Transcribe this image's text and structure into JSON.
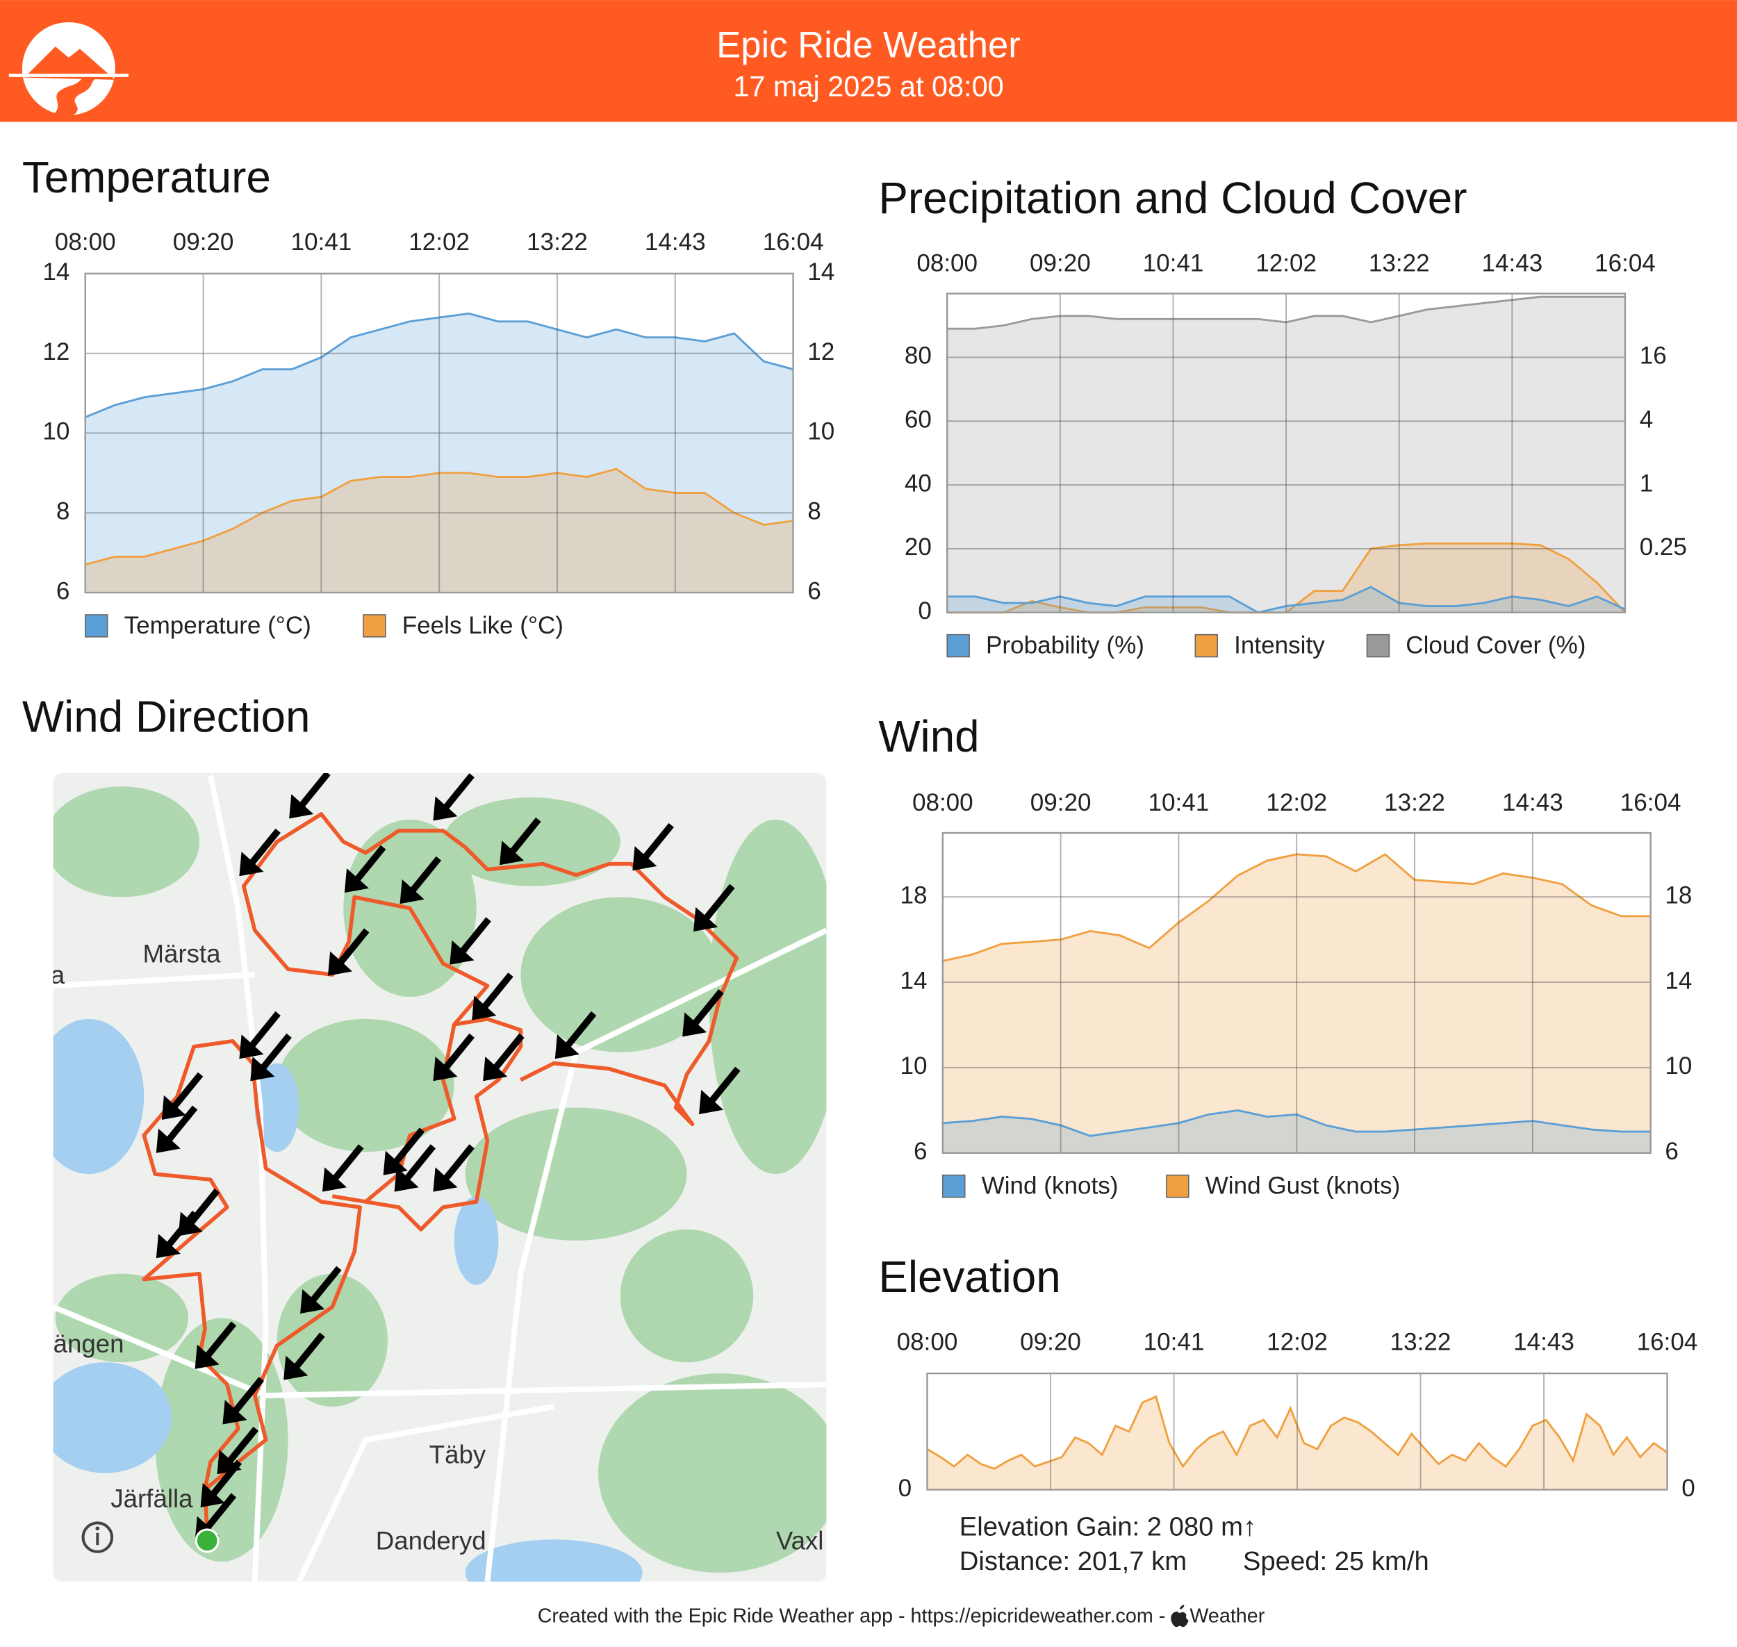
{
  "header": {
    "title": "Epic Ride Weather",
    "subtitle": "17 maj 2025 at 08:00"
  },
  "chart_data": [
    {
      "type": "area",
      "title": "Temperature",
      "xticks": [
        "08:00",
        "09:20",
        "10:41",
        "12:02",
        "13:22",
        "14:43",
        "16:04"
      ],
      "ylim": [
        6,
        14
      ],
      "yticks": [
        6,
        8,
        10,
        12,
        14
      ],
      "y2lim": [
        6,
        14
      ],
      "y2ticks": [
        6,
        8,
        10,
        12,
        14
      ],
      "grid": true,
      "series": [
        {
          "name": "Temperature (°C)",
          "color": "#5b9fd6",
          "values": [
            10.4,
            10.7,
            10.9,
            11.0,
            11.1,
            11.3,
            11.6,
            11.6,
            11.9,
            12.4,
            12.6,
            12.8,
            12.9,
            13.0,
            12.8,
            12.8,
            12.6,
            12.4,
            12.6,
            12.4,
            12.4,
            12.3,
            12.5,
            11.8,
            11.6
          ]
        },
        {
          "name": "Feels Like (°C)",
          "color": "#f0a040",
          "values": [
            6.7,
            6.9,
            6.9,
            7.1,
            7.3,
            7.6,
            8.0,
            8.3,
            8.4,
            8.8,
            8.9,
            8.9,
            9.0,
            9.0,
            8.9,
            8.9,
            9.0,
            8.9,
            9.1,
            8.6,
            8.5,
            8.5,
            8.0,
            7.7,
            7.8
          ]
        }
      ]
    },
    {
      "type": "area",
      "title": "Precipitation and Cloud Cover",
      "xticks": [
        "08:00",
        "09:20",
        "10:41",
        "12:02",
        "13:22",
        "14:43",
        "16:04"
      ],
      "ylim": [
        0,
        100
      ],
      "yticks": [
        0,
        20,
        40,
        60,
        80
      ],
      "y2lim": [
        0.0625,
        64
      ],
      "y2ticks": [
        0.25,
        1,
        4,
        16
      ],
      "y2log": true,
      "grid": true,
      "series": [
        {
          "name": "Probability (%)",
          "color": "#5b9fd6",
          "values": [
            5,
            5,
            3,
            3,
            5,
            3,
            2,
            5,
            5,
            5,
            5,
            0,
            2,
            3,
            4,
            8,
            3,
            2,
            2,
            3,
            5,
            4,
            2,
            5,
            1
          ]
        },
        {
          "name": "Intensity",
          "color": "#f0a040",
          "axis": "y2",
          "values": [
            0,
            0,
            0,
            0.08,
            0.07,
            0,
            0,
            0.07,
            0.07,
            0.07,
            0,
            0,
            0,
            0.1,
            0.1,
            0.25,
            0.27,
            0.28,
            0.28,
            0.28,
            0.28,
            0.27,
            0.2,
            0.12,
            0
          ]
        },
        {
          "name": "Cloud Cover (%)",
          "color": "#9a9a9a",
          "values": [
            89,
            89,
            90,
            92,
            93,
            93,
            92,
            92,
            92,
            92,
            92,
            92,
            91,
            93,
            93,
            91,
            93,
            95,
            96,
            97,
            98,
            99,
            99,
            99,
            99
          ]
        }
      ]
    },
    {
      "type": "area",
      "title": "Wind",
      "xticks": [
        "08:00",
        "09:20",
        "10:41",
        "12:02",
        "13:22",
        "14:43",
        "16:04"
      ],
      "ylim": [
        6,
        21
      ],
      "yticks": [
        6,
        10,
        14,
        18
      ],
      "y2lim": [
        6,
        21
      ],
      "y2ticks": [
        6,
        10,
        14,
        18
      ],
      "grid": true,
      "series": [
        {
          "name": "Wind (knots)",
          "color": "#5b9fd6",
          "values": [
            7.4,
            7.5,
            7.7,
            7.6,
            7.3,
            6.8,
            7.0,
            7.2,
            7.4,
            7.8,
            8.0,
            7.7,
            7.8,
            7.3,
            7.0,
            7.0,
            7.1,
            7.2,
            7.3,
            7.4,
            7.5,
            7.3,
            7.1,
            7.0,
            7.0
          ]
        },
        {
          "name": "Wind Gust (knots)",
          "color": "#f0a040",
          "values": [
            15,
            15.3,
            15.8,
            15.9,
            16,
            16.4,
            16.2,
            15.6,
            16.8,
            17.8,
            19.0,
            19.7,
            20.0,
            19.9,
            19.2,
            20.0,
            18.8,
            18.7,
            18.6,
            19.1,
            18.9,
            18.6,
            17.6,
            17.1,
            17.1
          ]
        }
      ]
    },
    {
      "type": "area",
      "title": "Elevation",
      "xticks": [
        "08:00",
        "09:20",
        "10:41",
        "12:02",
        "13:22",
        "14:43",
        "16:04"
      ],
      "ylim": [
        0,
        100
      ],
      "yticks": [
        0
      ],
      "y2lim": [
        0,
        100
      ],
      "y2ticks": [
        0
      ],
      "grid": true,
      "series": [
        {
          "color": "#f0a040",
          "values": [
            35,
            28,
            20,
            30,
            22,
            18,
            25,
            30,
            20,
            24,
            28,
            45,
            40,
            30,
            55,
            50,
            75,
            80,
            40,
            20,
            35,
            45,
            50,
            30,
            55,
            60,
            45,
            70,
            40,
            35,
            55,
            62,
            58,
            50,
            40,
            30,
            48,
            35,
            22,
            30,
            25,
            40,
            28,
            20,
            35,
            55,
            60,
            45,
            25,
            65,
            55,
            30,
            45,
            28,
            40,
            32
          ]
        }
      ],
      "annotations": [
        "Elevation Gain: 2 080 m↑",
        "Distance: 201,7 km",
        "Speed: 25 km/h"
      ]
    }
  ],
  "map": {
    "title": "Wind Direction",
    "labels": [
      "Märsta",
      "ängen",
      "Täby",
      "Järfälla",
      "Danderyd",
      "Vaxl",
      "a"
    ]
  },
  "footer": {
    "text": "Created with the Epic Ride Weather app - https://epicrideweather.com -",
    "source": "Weather"
  }
}
